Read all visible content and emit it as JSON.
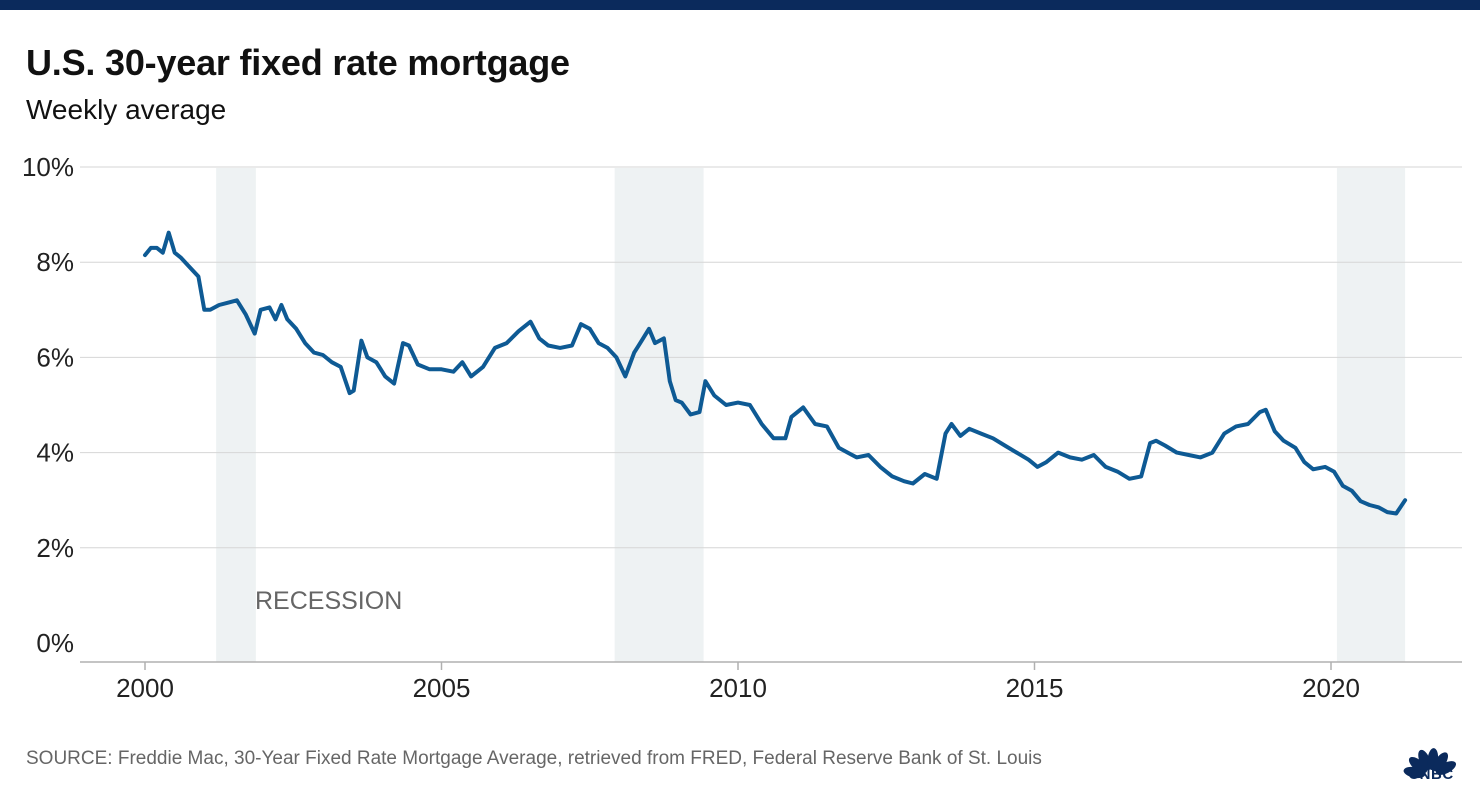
{
  "header": {
    "title": "U.S. 30-year fixed rate mortgage",
    "subtitle": "Weekly average"
  },
  "footer": {
    "source": "SOURCE: Freddie Mac, 30-Year Fixed Rate Mortgage Average, retrieved from FRED, Federal Reserve Bank of St. Louis",
    "logo_text": "CNBC"
  },
  "colors": {
    "top_bar": "#0b2a5c",
    "line": "#0e5a94",
    "recession_band": "#eef2f3",
    "gridline": "#d6d6d6",
    "baseline": "#b0b0b0"
  },
  "chart_data": {
    "type": "line",
    "title": "U.S. 30-year fixed rate mortgage",
    "subtitle": "Weekly average",
    "xlabel": "",
    "ylabel": "",
    "xlim": [
      1998.9,
      2022.2
    ],
    "ylim": [
      -0.4,
      10.5
    ],
    "y_ticks": [
      0,
      2,
      4,
      6,
      8,
      10
    ],
    "y_tick_labels": [
      "0%",
      "2%",
      "4%",
      "6%",
      "8%",
      "10%"
    ],
    "x_ticks": [
      2000,
      2005,
      2010,
      2015,
      2020
    ],
    "x_tick_labels": [
      "2000",
      "2005",
      "2010",
      "2015",
      "2020"
    ],
    "grid": true,
    "legend": "none",
    "recessions": [
      {
        "start": 2001.2,
        "end": 2001.87
      },
      {
        "start": 2007.92,
        "end": 2009.42
      },
      {
        "start": 2020.1,
        "end": 2021.25
      }
    ],
    "recession_label": "RECESSION",
    "series": [
      {
        "x": [
          2000.0,
          2000.1,
          2000.2,
          2000.3,
          2000.4,
          2000.5,
          2000.6,
          2000.75,
          2000.9,
          2001.0,
          2001.1,
          2001.25,
          2001.4,
          2001.55,
          2001.7,
          2001.85,
          2001.95,
          2002.1,
          2002.2,
          2002.3,
          2002.4,
          2002.55,
          2002.7,
          2002.85,
          2003.0,
          2003.15,
          2003.3,
          2003.45,
          2003.52,
          2003.65,
          2003.75,
          2003.9,
          2004.05,
          2004.2,
          2004.35,
          2004.45,
          2004.6,
          2004.8,
          2005.0,
          2005.2,
          2005.35,
          2005.5,
          2005.7,
          2005.9,
          2006.1,
          2006.3,
          2006.5,
          2006.65,
          2006.8,
          2007.0,
          2007.2,
          2007.35,
          2007.5,
          2007.65,
          2007.8,
          2007.95,
          2008.1,
          2008.25,
          2008.35,
          2008.5,
          2008.6,
          2008.75,
          2008.85,
          2008.95,
          2009.05,
          2009.2,
          2009.35,
          2009.45,
          2009.6,
          2009.8,
          2010.0,
          2010.2,
          2010.4,
          2010.6,
          2010.8,
          2010.9,
          2011.1,
          2011.3,
          2011.5,
          2011.7,
          2011.85,
          2012.0,
          2012.2,
          2012.4,
          2012.6,
          2012.8,
          2012.95,
          2013.15,
          2013.35,
          2013.5,
          2013.6,
          2013.75,
          2013.9,
          2014.1,
          2014.3,
          2014.5,
          2014.7,
          2014.9,
          2015.05,
          2015.2,
          2015.4,
          2015.6,
          2015.8,
          2016.0,
          2016.2,
          2016.4,
          2016.6,
          2016.8,
          2016.95,
          2017.05,
          2017.2,
          2017.4,
          2017.6,
          2017.8,
          2018.0,
          2018.2,
          2018.4,
          2018.6,
          2018.8,
          2018.9,
          2019.05,
          2019.2,
          2019.4,
          2019.55,
          2019.7,
          2019.9,
          2020.05,
          2020.2,
          2020.35,
          2020.5,
          2020.65,
          2020.8,
          2020.95,
          2021.1,
          2021.25
        ],
        "y": [
          8.15,
          8.3,
          8.3,
          8.2,
          8.62,
          8.2,
          8.1,
          7.9,
          7.7,
          7.0,
          7.0,
          7.1,
          7.15,
          7.2,
          6.9,
          6.5,
          7.0,
          7.05,
          6.8,
          7.1,
          6.8,
          6.6,
          6.3,
          6.1,
          6.05,
          5.9,
          5.8,
          5.25,
          5.3,
          6.35,
          6.0,
          5.9,
          5.6,
          5.45,
          6.3,
          6.25,
          5.85,
          5.75,
          5.75,
          5.7,
          5.9,
          5.6,
          5.8,
          6.2,
          6.3,
          6.55,
          6.75,
          6.4,
          6.25,
          6.2,
          6.25,
          6.7,
          6.6,
          6.3,
          6.2,
          6.0,
          5.6,
          6.1,
          6.3,
          6.6,
          6.3,
          6.4,
          5.5,
          5.1,
          5.05,
          4.8,
          4.85,
          5.5,
          5.2,
          5.0,
          5.05,
          5.0,
          4.6,
          4.3,
          4.3,
          4.75,
          4.95,
          4.6,
          4.55,
          4.1,
          4.0,
          3.9,
          3.95,
          3.7,
          3.5,
          3.4,
          3.35,
          3.55,
          3.45,
          4.4,
          4.6,
          4.35,
          4.5,
          4.4,
          4.3,
          4.15,
          4.0,
          3.85,
          3.7,
          3.8,
          4.0,
          3.9,
          3.85,
          3.95,
          3.7,
          3.6,
          3.45,
          3.5,
          4.2,
          4.25,
          4.15,
          4.0,
          3.95,
          3.9,
          4.0,
          4.4,
          4.55,
          4.6,
          4.85,
          4.9,
          4.45,
          4.25,
          4.1,
          3.8,
          3.65,
          3.7,
          3.6,
          3.3,
          3.2,
          2.98,
          2.9,
          2.85,
          2.75,
          2.72,
          3.0
        ]
      }
    ]
  }
}
